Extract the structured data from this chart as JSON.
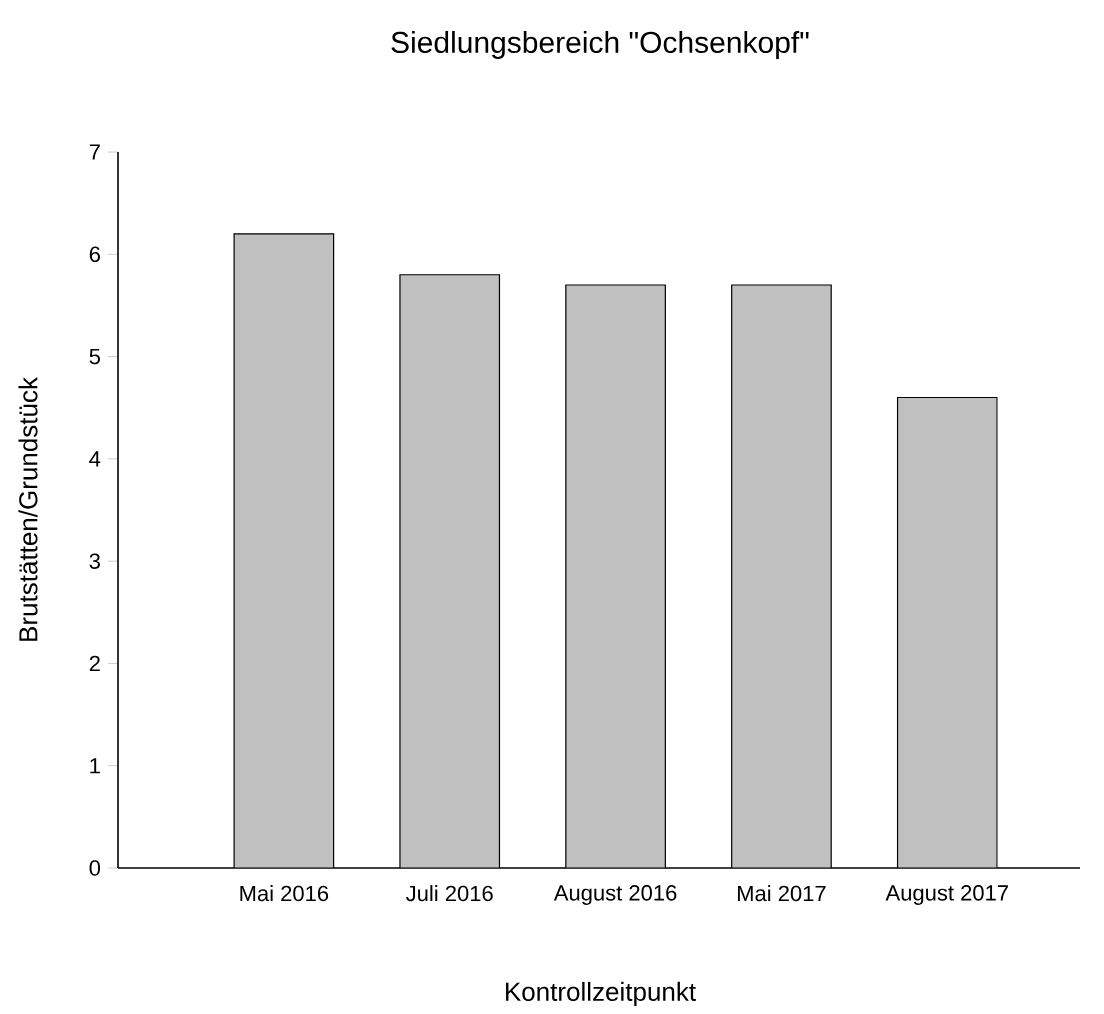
{
  "chart_data": {
    "type": "bar",
    "title": "Siedlungsbereich \"Ochsenkopf\"",
    "xlabel": "Kontrollzeitpunkt",
    "ylabel": "Brutstätten/Grundstück",
    "categories": [
      "Mai 2016",
      "Juli 2016",
      "August 2016",
      "Mai 2017",
      "August 2017"
    ],
    "values": [
      6.2,
      5.8,
      5.7,
      5.7,
      4.6
    ],
    "color": "#c0c0c0",
    "ylim": [
      0,
      7
    ],
    "yticks": [
      0,
      1,
      2,
      3,
      4,
      5,
      6,
      7
    ]
  }
}
